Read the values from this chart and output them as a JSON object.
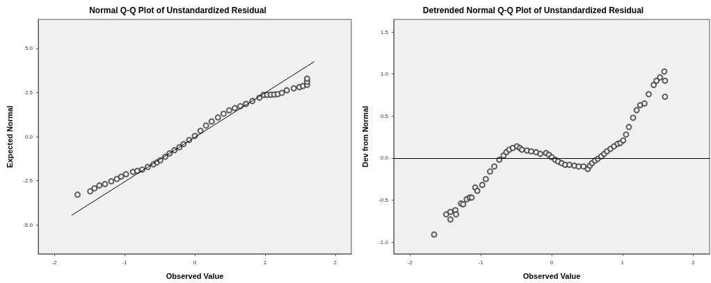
{
  "chart_data": [
    {
      "type": "scatter",
      "title": "Normal Q-Q Plot of Unstandardized Residual",
      "xlabel": "Observed Value",
      "ylabel": "Expected Normal",
      "xlim": [
        -2.23,
        2.23
      ],
      "ylim": [
        -6.65,
        6.65
      ],
      "xticks": [
        -2,
        -1,
        0,
        1,
        2
      ],
      "yticks": [
        {
          "value": -5,
          "label": "-5.0"
        },
        {
          "value": -2.5,
          "label": "-2.5"
        },
        {
          "value": 0,
          "label": "0.0"
        },
        {
          "value": 2.5,
          "label": "2.5"
        },
        {
          "value": 5,
          "label": "5.0"
        }
      ],
      "grid": false,
      "marker": "circle",
      "series": [
        {
          "color": "#333333",
          "x": [
            -1.67,
            -1.49,
            -1.43,
            -1.36,
            -1.28,
            -1.19,
            -1.11,
            -1.05,
            -0.98,
            -0.88,
            -0.82,
            -0.75,
            -0.67,
            -0.59,
            -0.54,
            -0.49,
            -0.42,
            -0.36,
            -0.29,
            -0.22,
            -0.16,
            -0.08,
            0,
            0.08,
            0.16,
            0.24,
            0.33,
            0.41,
            0.49,
            0.57,
            0.65,
            0.73,
            0.82,
            0.92,
            0.98,
            1.03,
            1.08,
            1.13,
            1.18,
            1.24,
            1.31,
            1.41,
            1.49,
            1.54,
            1.6,
            1.6,
            1.6
          ],
          "values": [
            -3.29,
            -3.1,
            -2.93,
            -2.77,
            -2.69,
            -2.53,
            -2.4,
            -2.27,
            -2.13,
            -2.0,
            -1.94,
            -1.87,
            -1.72,
            -1.57,
            -1.46,
            -1.34,
            -1.14,
            -0.95,
            -0.77,
            -0.6,
            -0.42,
            -0.19,
            0.04,
            0.33,
            0.63,
            0.86,
            1.09,
            1.3,
            1.49,
            1.62,
            1.73,
            1.86,
            2.02,
            2.21,
            2.37,
            2.37,
            2.38,
            2.39,
            2.41,
            2.48,
            2.63,
            2.74,
            2.81,
            2.87,
            2.94,
            3.11,
            3.29
          ]
        },
        {
          "type": "line",
          "color": "#000000",
          "marker": "none",
          "x": [
            -1.75,
            1.7
          ],
          "values": [
            -4.45,
            4.25
          ]
        }
      ]
    },
    {
      "type": "scatter",
      "title": "Detrended Normal Q-Q Plot of Unstandardized Residual",
      "xlabel": "Observed Value",
      "ylabel": "Dev from Normal",
      "xlim": [
        -2.23,
        2.23
      ],
      "ylim": [
        -1.14,
        1.65
      ],
      "xticks": [
        -2,
        -1,
        0,
        1,
        2
      ],
      "yticks": [
        {
          "value": -1,
          "label": "-1.0"
        },
        {
          "value": -0.5,
          "label": "-0.5"
        },
        {
          "value": 0,
          "label": "0.0"
        },
        {
          "value": 0.5,
          "label": "0.5"
        },
        {
          "value": 1,
          "label": "1.0"
        },
        {
          "value": 1.5,
          "label": "1.5"
        }
      ],
      "grid": false,
      "marker": "circle",
      "ref_lines": [
        {
          "axis": "y",
          "value": 0,
          "color": "#000000"
        }
      ],
      "series": [
        {
          "color": "#333333",
          "x": [
            -1.66,
            -1.49,
            -1.43,
            -1.43,
            -1.36,
            -1.35,
            -1.28,
            -1.25,
            -1.2,
            -1.16,
            -1.13,
            -1.08,
            -1.05,
            -0.98,
            -0.93,
            -0.87,
            -0.81,
            -0.74,
            -0.68,
            -0.64,
            -0.6,
            -0.55,
            -0.49,
            -0.45,
            -0.42,
            -0.35,
            -0.29,
            -0.22,
            -0.16,
            -0.08,
            -0.04,
            0,
            0.05,
            0.09,
            0.14,
            0.19,
            0.25,
            0.32,
            0.38,
            0.45,
            0.51,
            0.54,
            0.57,
            0.61,
            0.65,
            0.7,
            0.74,
            0.78,
            0.83,
            0.88,
            0.93,
            0.97,
            1.01,
            1.05,
            1.09,
            1.15,
            1.2,
            1.25,
            1.31,
            1.37,
            1.44,
            1.48,
            1.53,
            1.59,
            1.6,
            1.6
          ],
          "values": [
            -0.91,
            -0.67,
            -0.64,
            -0.73,
            -0.62,
            -0.67,
            -0.54,
            -0.55,
            -0.49,
            -0.47,
            -0.47,
            -0.35,
            -0.39,
            -0.32,
            -0.25,
            -0.16,
            -0.1,
            -0.02,
            0.03,
            0.07,
            0.1,
            0.12,
            0.14,
            0.12,
            0.1,
            0.09,
            0.08,
            0.07,
            0.05,
            0.06,
            0.04,
            0.01,
            -0.02,
            -0.04,
            -0.06,
            -0.08,
            -0.08,
            -0.09,
            -0.1,
            -0.1,
            -0.13,
            -0.09,
            -0.06,
            -0.03,
            -0.01,
            0.02,
            0.05,
            0.08,
            0.11,
            0.14,
            0.17,
            0.18,
            0.21,
            0.28,
            0.37,
            0.48,
            0.57,
            0.63,
            0.65,
            0.76,
            0.87,
            0.92,
            0.96,
            1.03,
            0.92,
            0.73
          ]
        }
      ]
    }
  ]
}
